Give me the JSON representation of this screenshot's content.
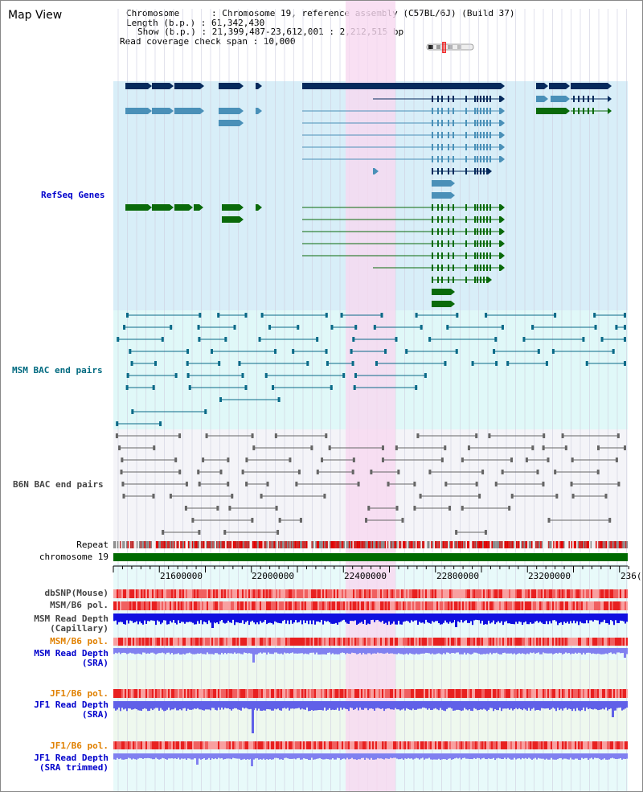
{
  "app": {
    "title": "Map View"
  },
  "info": {
    "chromosome": "Chromosome      : Chromosome 19, reference assembly (C57BL/6J) (Build 37)",
    "length": "Length (b.p.) : 61,342,430",
    "show": "Show (b.p.) : 21,399,487-23,612,001 : 2,212,515 bp",
    "coverage": "Read coverage check span : 10,000"
  },
  "tracks": {
    "refseq": "RefSeq Genes",
    "msm_bac": "MSM BAC end pairs",
    "b6n_bac": "B6N BAC end pairs",
    "repeat": "Repeat",
    "chromosome": "chromosome 19",
    "dbsnp": "dbSNP(Mouse)",
    "msm_b6_pol_1": "MSM/B6 pol.",
    "msm_depth_cap_1": "MSM Read Depth",
    "msm_depth_cap_2": "(Capillary)",
    "msm_b6_pol_2": "MSM/B6 pol.",
    "msm_depth_sra_1": "MSM Read Depth",
    "msm_depth_sra_2": "(SRA)",
    "jf1_pol_1": "JF1/B6 pol.",
    "jf1_depth_sra_1": "JF1 Read Depth",
    "jf1_depth_sra_2": "(SRA)",
    "jf1_pol_2": "JF1/B6 pol.",
    "jf1_depth_trim_1": "JF1 Read Depth",
    "jf1_depth_trim_2": "(SRA trimmed)"
  },
  "axis": {
    "ticks": [
      "21600000",
      "22000000",
      "22400000",
      "22800000",
      "23200000",
      "236("
    ]
  },
  "colors": {
    "refseq_bg": "#d8eef8",
    "bac_bg": "#e0f8f8",
    "b6n_bg": "#f4f4f8",
    "highlight": "#f8d8f0",
    "navy": "#062a5c",
    "steel": "#4a90b8",
    "green": "#0a6a0a",
    "teal": "#0a6a88",
    "gray": "#666666",
    "label_blue": "#0000cc",
    "label_orange": "#e08000",
    "label_teal": "#006a80"
  }
}
